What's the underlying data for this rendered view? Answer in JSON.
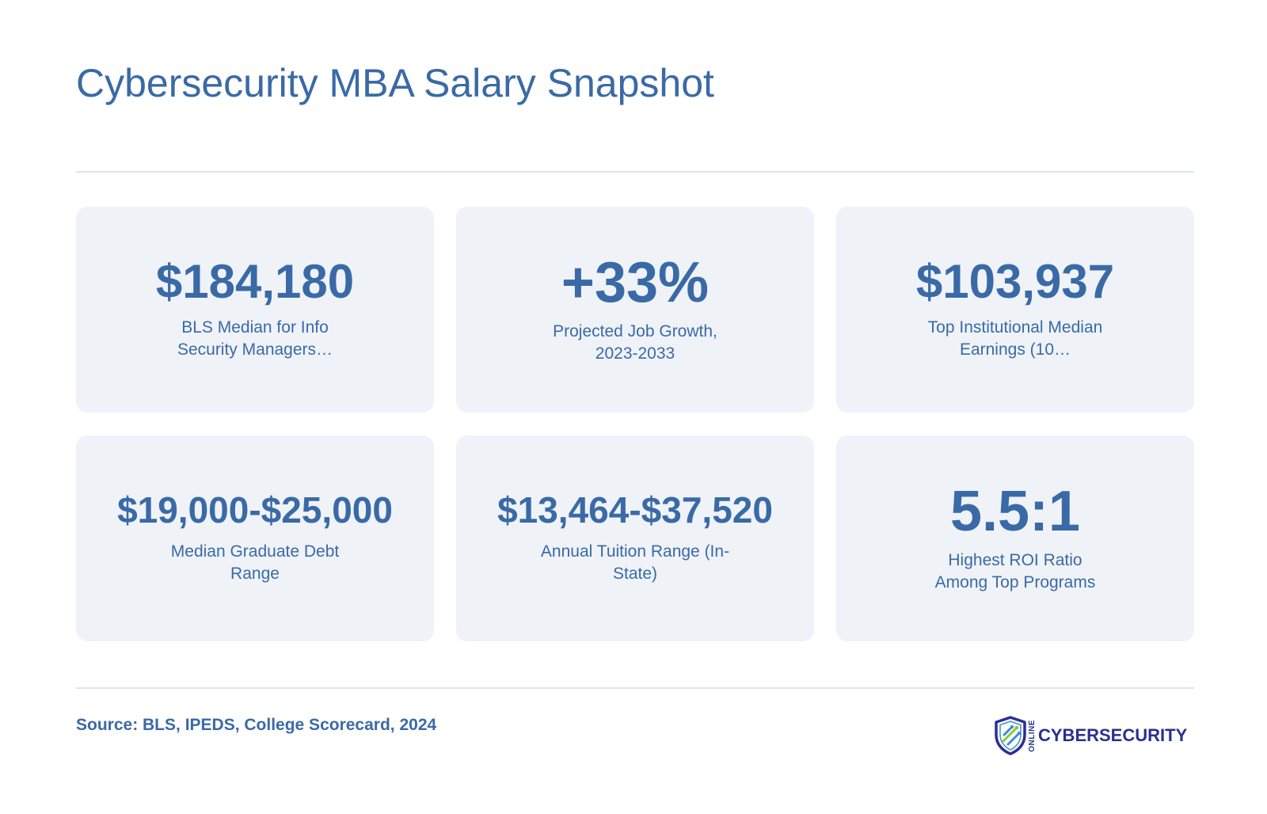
{
  "header": {
    "title": "Cybersecurity MBA Salary Snapshot"
  },
  "stats": [
    {
      "value": "$184,180",
      "label": "BLS Median for Info Security Managers…"
    },
    {
      "value": "+33%",
      "label": "Projected Job Growth, 2023-2033"
    },
    {
      "value": "$103,937",
      "label": "Top Institutional Median Earnings (10…"
    },
    {
      "value": "$19,000-$25,000",
      "label": "Median Graduate Debt Range"
    },
    {
      "value": "$13,464-$37,520",
      "label": "Annual Tuition Range (In-State)"
    },
    {
      "value": "5.5:1",
      "label": "Highest ROI Ratio Among Top Programs"
    }
  ],
  "footer": {
    "source": "Source: BLS, IPEDS, College Scorecard, 2024",
    "logo_small": "ONLINE",
    "logo_main": "CYBERSECURITY",
    "logo_icon": "shield-icon"
  },
  "colors": {
    "text": "#3a6aa6",
    "card_background": "#eff2f7",
    "divider": "#dde5ef",
    "logo_navy": "#2b2f8f",
    "logo_green": "#8cc63f",
    "logo_blue": "#3a8fd6"
  }
}
